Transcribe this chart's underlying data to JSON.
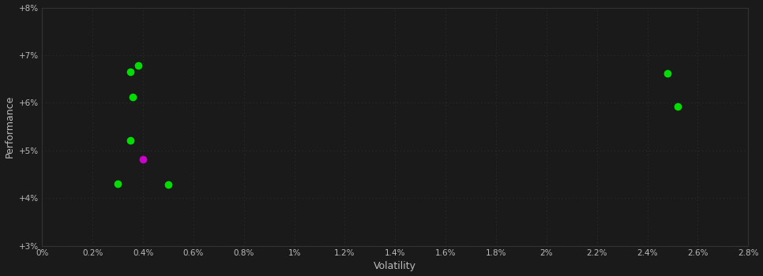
{
  "xlabel": "Volatility",
  "ylabel": "Performance",
  "background_color": "#1a1a1a",
  "text_color": "#bbbbbb",
  "points_green": [
    [
      0.38,
      6.78
    ],
    [
      0.35,
      6.65
    ],
    [
      0.36,
      6.12
    ],
    [
      0.35,
      5.22
    ],
    [
      0.3,
      4.3
    ],
    [
      0.5,
      4.28
    ],
    [
      2.48,
      6.62
    ],
    [
      2.52,
      5.92
    ]
  ],
  "points_magenta": [
    [
      0.4,
      4.82
    ]
  ],
  "xlim": [
    0.0,
    2.8
  ],
  "ylim": [
    3.0,
    8.0
  ],
  "xticks": [
    0.0,
    0.2,
    0.4,
    0.6,
    0.8,
    1.0,
    1.2,
    1.4,
    1.6,
    1.8,
    2.0,
    2.2,
    2.4,
    2.6,
    2.8
  ],
  "yticks": [
    3.0,
    4.0,
    5.0,
    6.0,
    7.0,
    8.0
  ],
  "xtick_labels": [
    "0%",
    "0.2%",
    "0.4%",
    "0.6%",
    "0.8%",
    "1%",
    "1.2%",
    "1.4%",
    "1.6%",
    "1.8%",
    "2%",
    "2.2%",
    "2.4%",
    "2.6%",
    "2.8%"
  ],
  "ytick_labels": [
    "+3%",
    "+4%",
    "+5%",
    "+6%",
    "+7%",
    "+8%"
  ],
  "marker_size": 6
}
